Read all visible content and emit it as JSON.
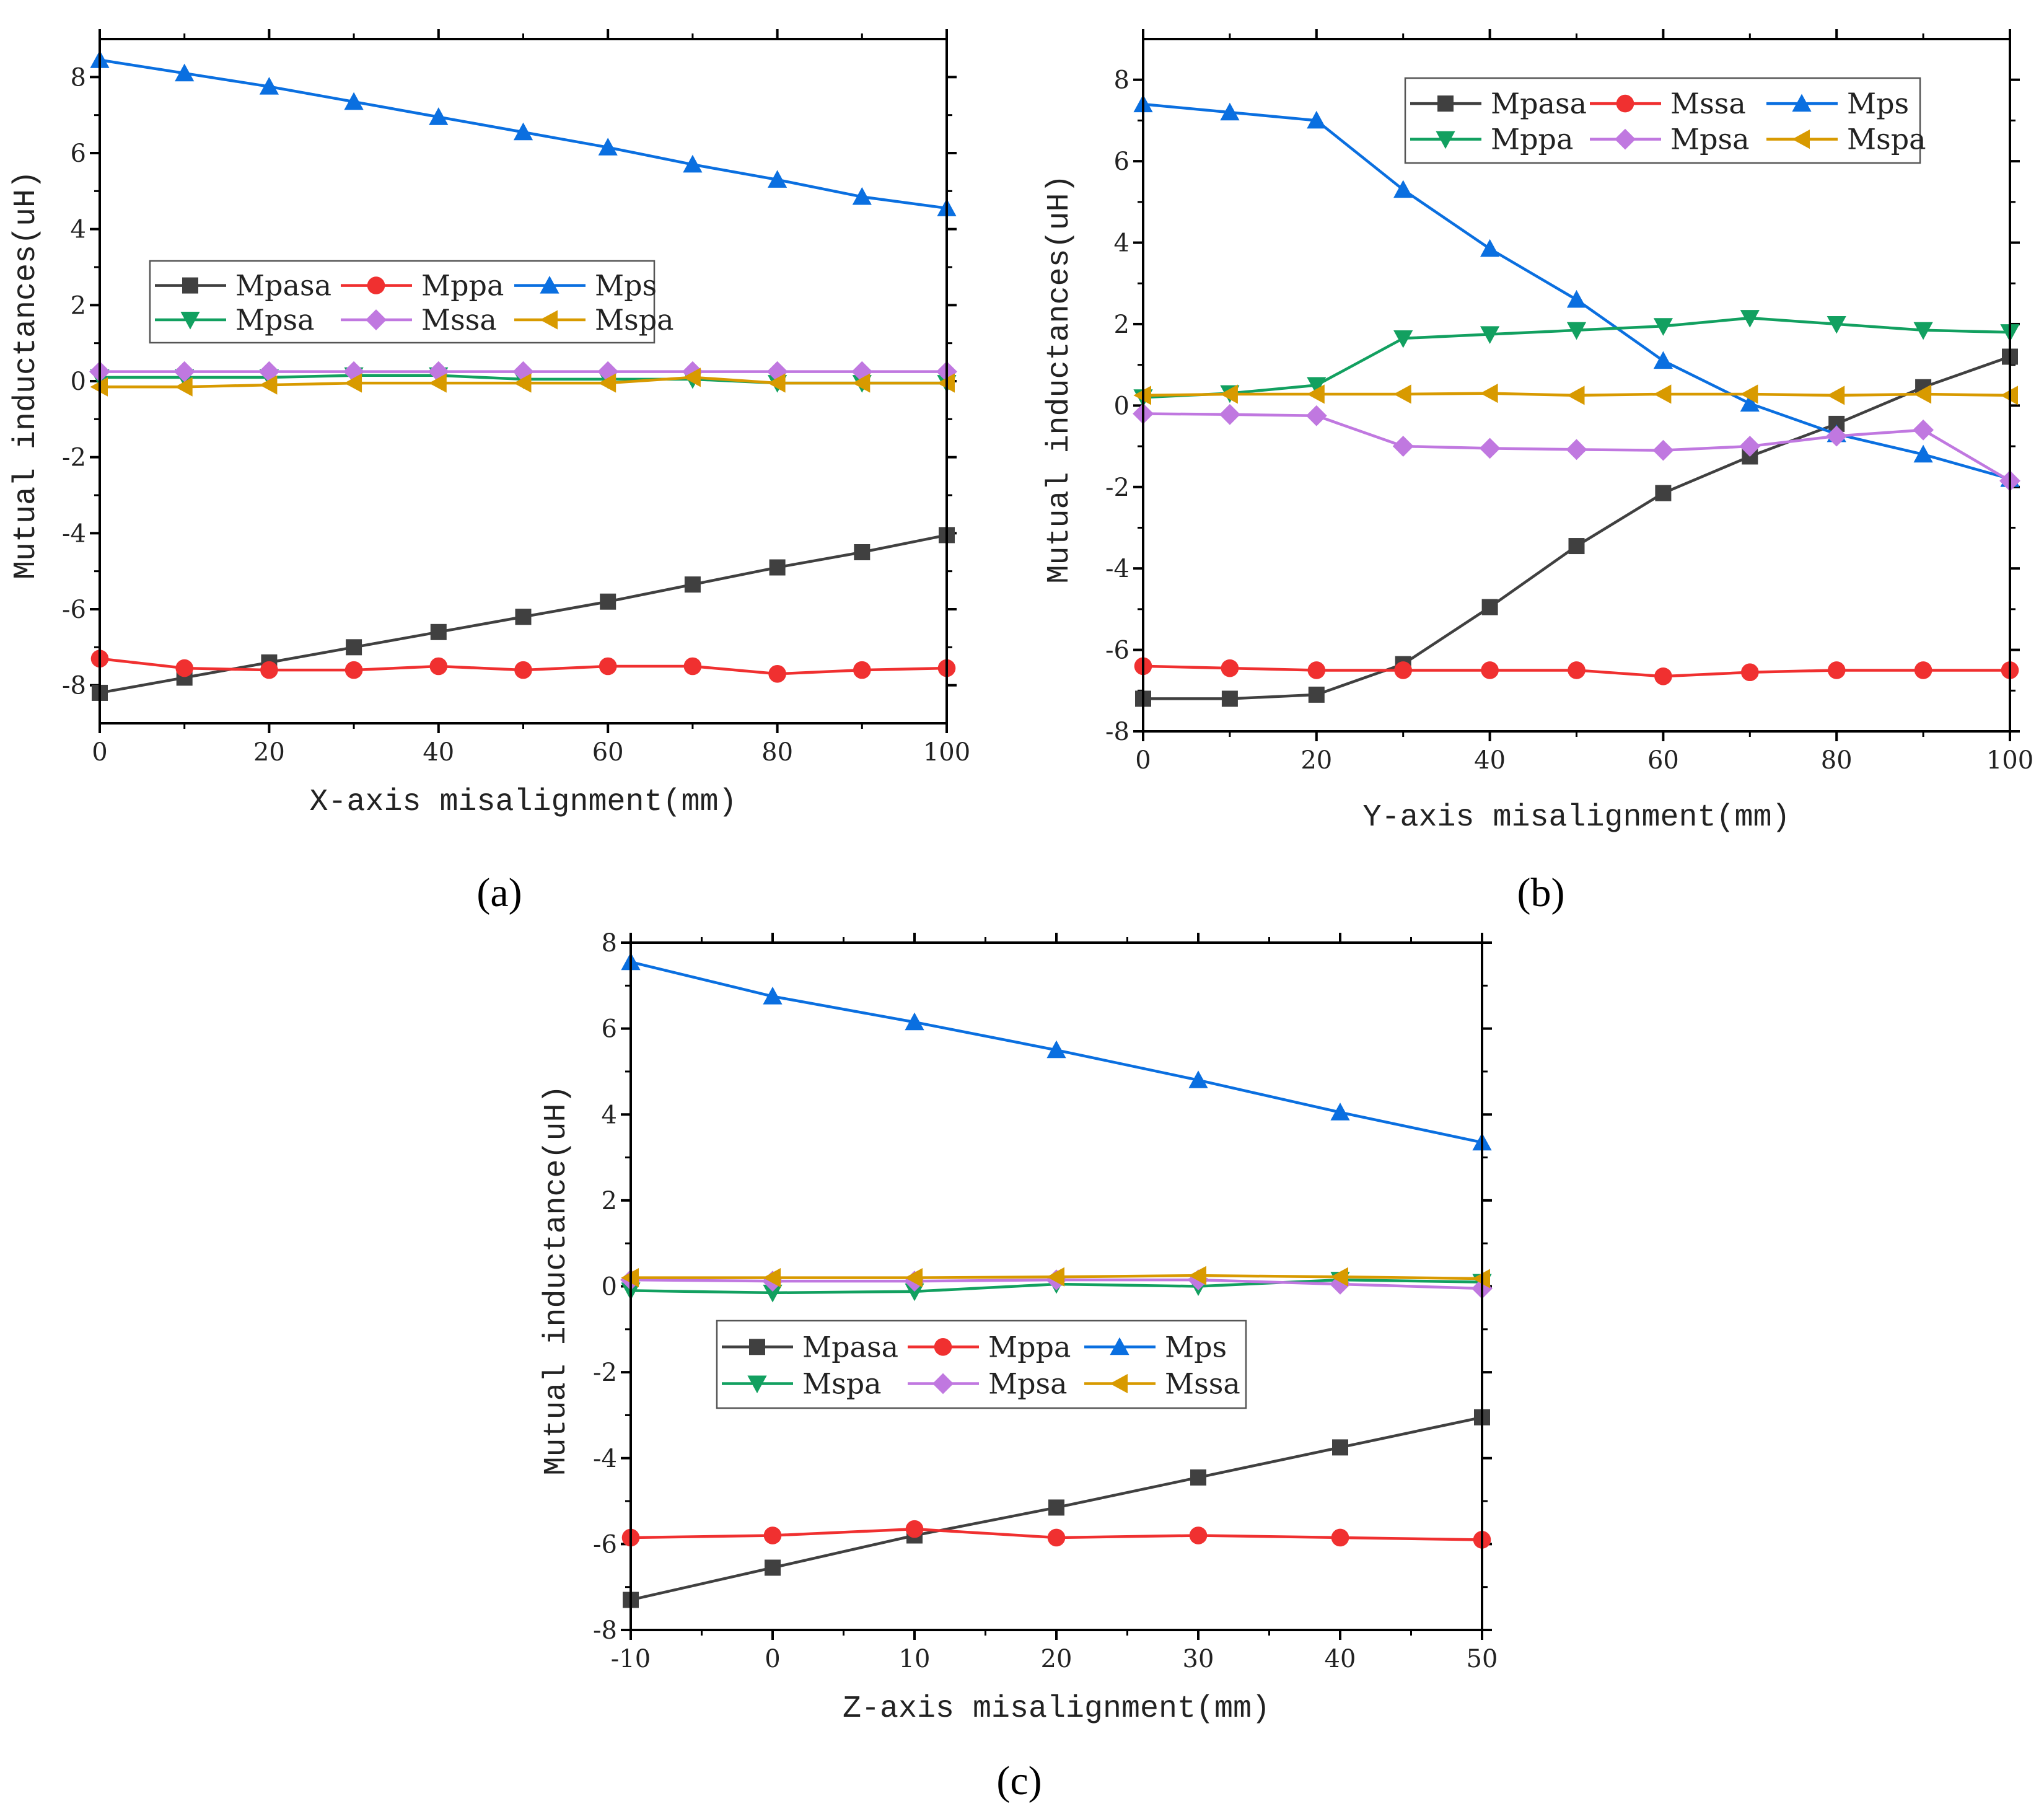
{
  "chart_data": [
    {
      "type": "line",
      "panel_label": "(a)",
      "xlabel": "X-axis misalignment(mm)",
      "ylabel": "Mutual inductances(uH)",
      "xlim": [
        0,
        100
      ],
      "ylim": [
        -9,
        9
      ],
      "xticks": [
        0,
        20,
        40,
        60,
        80,
        100
      ],
      "yticks": [
        -8,
        -6,
        -4,
        -2,
        0,
        2,
        4,
        6,
        8
      ],
      "x": [
        0,
        10,
        20,
        30,
        40,
        50,
        60,
        70,
        80,
        90,
        100
      ],
      "legend_position": "center-left",
      "series": [
        {
          "name": "Mpasa",
          "color": "#404040",
          "marker": "square",
          "values": [
            -8.2,
            -7.8,
            -7.4,
            -7.0,
            -6.6,
            -6.2,
            -5.8,
            -5.35,
            -4.9,
            -4.5,
            -4.05
          ]
        },
        {
          "name": "Mppa",
          "color": "#f03030",
          "marker": "circle",
          "values": [
            -7.3,
            -7.55,
            -7.6,
            -7.6,
            -7.5,
            -7.6,
            -7.5,
            -7.5,
            -7.7,
            -7.6,
            -7.55
          ]
        },
        {
          "name": "Mps",
          "color": "#0a6fe0",
          "marker": "triangle-up",
          "values": [
            8.45,
            8.1,
            7.75,
            7.35,
            6.95,
            6.55,
            6.15,
            5.7,
            5.3,
            4.85,
            4.55
          ]
        },
        {
          "name": "Mpsa",
          "color": "#12a060",
          "marker": "triangle-down",
          "values": [
            0.1,
            0.1,
            0.1,
            0.15,
            0.15,
            0.05,
            0.05,
            0.05,
            -0.05,
            -0.05,
            -0.05
          ]
        },
        {
          "name": "Mssa",
          "color": "#c078e0",
          "marker": "diamond",
          "values": [
            0.25,
            0.25,
            0.25,
            0.25,
            0.25,
            0.25,
            0.25,
            0.25,
            0.25,
            0.25,
            0.25
          ]
        },
        {
          "name": "Mspa",
          "color": "#d89a00",
          "marker": "triangle-left",
          "values": [
            -0.15,
            -0.15,
            -0.1,
            -0.05,
            -0.05,
            -0.05,
            -0.05,
            0.1,
            -0.05,
            -0.05,
            -0.05
          ]
        }
      ]
    },
    {
      "type": "line",
      "panel_label": "(b)",
      "xlabel": "Y-axis misalignment(mm)",
      "ylabel": "Mutual inductances(uH)",
      "xlim": [
        0,
        100
      ],
      "ylim": [
        -8,
        9
      ],
      "xticks": [
        0,
        20,
        40,
        60,
        80,
        100
      ],
      "yticks": [
        -8,
        -6,
        -4,
        -2,
        0,
        2,
        4,
        6,
        8
      ],
      "x": [
        0,
        10,
        20,
        30,
        40,
        50,
        60,
        70,
        80,
        90,
        100
      ],
      "legend_position": "top-right",
      "series": [
        {
          "name": "Mpasa",
          "color": "#404040",
          "marker": "square",
          "values": [
            -7.2,
            -7.2,
            -7.1,
            -6.35,
            -4.95,
            -3.45,
            -2.15,
            -1.25,
            -0.45,
            0.45,
            1.2
          ]
        },
        {
          "name": "Mssa",
          "color": "#f03030",
          "marker": "circle",
          "values": [
            -6.4,
            -6.45,
            -6.5,
            -6.5,
            -6.5,
            -6.5,
            -6.65,
            -6.55,
            -6.5,
            -6.5,
            -6.5
          ]
        },
        {
          "name": "Mps",
          "color": "#0a6fe0",
          "marker": "triangle-up",
          "values": [
            7.4,
            7.2,
            7.0,
            5.3,
            3.85,
            2.6,
            1.1,
            0.05,
            -0.7,
            -1.2,
            -1.8
          ]
        },
        {
          "name": "Mppa",
          "color": "#12a060",
          "marker": "triangle-down",
          "values": [
            0.2,
            0.3,
            0.5,
            1.65,
            1.75,
            1.85,
            1.95,
            2.15,
            2.0,
            1.85,
            1.8
          ]
        },
        {
          "name": "Mpsa",
          "color": "#c078e0",
          "marker": "diamond",
          "values": [
            -0.2,
            -0.22,
            -0.25,
            -1.0,
            -1.05,
            -1.08,
            -1.1,
            -1.0,
            -0.75,
            -0.6,
            -1.85
          ]
        },
        {
          "name": "Mspa",
          "color": "#d89a00",
          "marker": "triangle-left",
          "values": [
            0.25,
            0.28,
            0.28,
            0.28,
            0.3,
            0.25,
            0.28,
            0.28,
            0.25,
            0.28,
            0.25
          ]
        }
      ]
    },
    {
      "type": "line",
      "panel_label": "(c)",
      "xlabel": "Z-axis misalignment(mm)",
      "ylabel": "Mutual inductance(uH)",
      "xlim": [
        -10,
        50
      ],
      "ylim": [
        -8,
        8
      ],
      "xticks": [
        -10,
        0,
        10,
        20,
        30,
        40,
        50
      ],
      "yticks": [
        -8,
        -6,
        -4,
        -2,
        0,
        2,
        4,
        6,
        8
      ],
      "x": [
        -10,
        0,
        10,
        20,
        30,
        40,
        50
      ],
      "legend_position": "center",
      "series": [
        {
          "name": "Mpasa",
          "color": "#404040",
          "marker": "square",
          "values": [
            -7.3,
            -6.55,
            -5.8,
            -5.15,
            -4.45,
            -3.75,
            -3.05
          ]
        },
        {
          "name": "Mppa",
          "color": "#f03030",
          "marker": "circle",
          "values": [
            -5.85,
            -5.8,
            -5.65,
            -5.85,
            -5.8,
            -5.85,
            -5.9
          ]
        },
        {
          "name": "Mps",
          "color": "#0a6fe0",
          "marker": "triangle-up",
          "values": [
            7.55,
            6.75,
            6.15,
            5.5,
            4.8,
            4.05,
            3.35
          ]
        },
        {
          "name": "Mspa",
          "color": "#12a060",
          "marker": "triangle-down",
          "values": [
            -0.1,
            -0.15,
            -0.12,
            0.05,
            0.0,
            0.15,
            0.1
          ]
        },
        {
          "name": "Mpsa",
          "color": "#c078e0",
          "marker": "diamond",
          "values": [
            0.15,
            0.12,
            0.12,
            0.15,
            0.15,
            0.05,
            -0.05
          ]
        },
        {
          "name": "Mssa",
          "color": "#d89a00",
          "marker": "triangle-left",
          "values": [
            0.2,
            0.2,
            0.2,
            0.22,
            0.25,
            0.22,
            0.18
          ]
        }
      ]
    }
  ]
}
